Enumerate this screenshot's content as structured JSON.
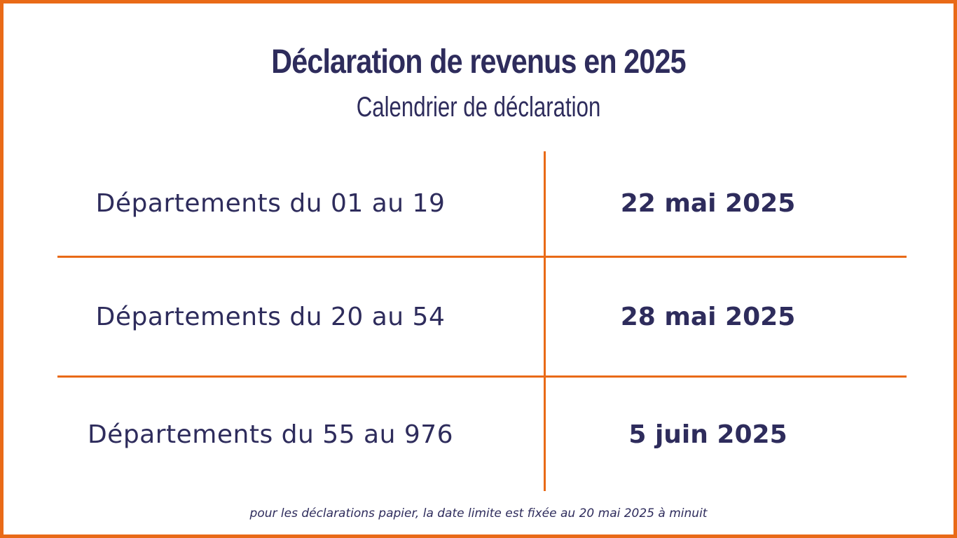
{
  "header": {
    "title": "Déclaration de revenus en 2025",
    "subtitle": "Calendrier de déclaration"
  },
  "calendar": {
    "rows": [
      {
        "departments": "Départements du 01 au 19",
        "deadline": "22 mai 2025"
      },
      {
        "departments": "Départements du 20 au 54",
        "deadline": "28 mai 2025"
      },
      {
        "departments": "Départements du 55 au 976",
        "deadline": "5 juin 2025"
      }
    ]
  },
  "footer": {
    "note": "pour les déclarations papier, la date limite est fixée au 20 mai 2025 à minuit"
  },
  "colors": {
    "accent": "#E96A17",
    "text": "#2E2C5C",
    "background": "#FFFFFF"
  }
}
